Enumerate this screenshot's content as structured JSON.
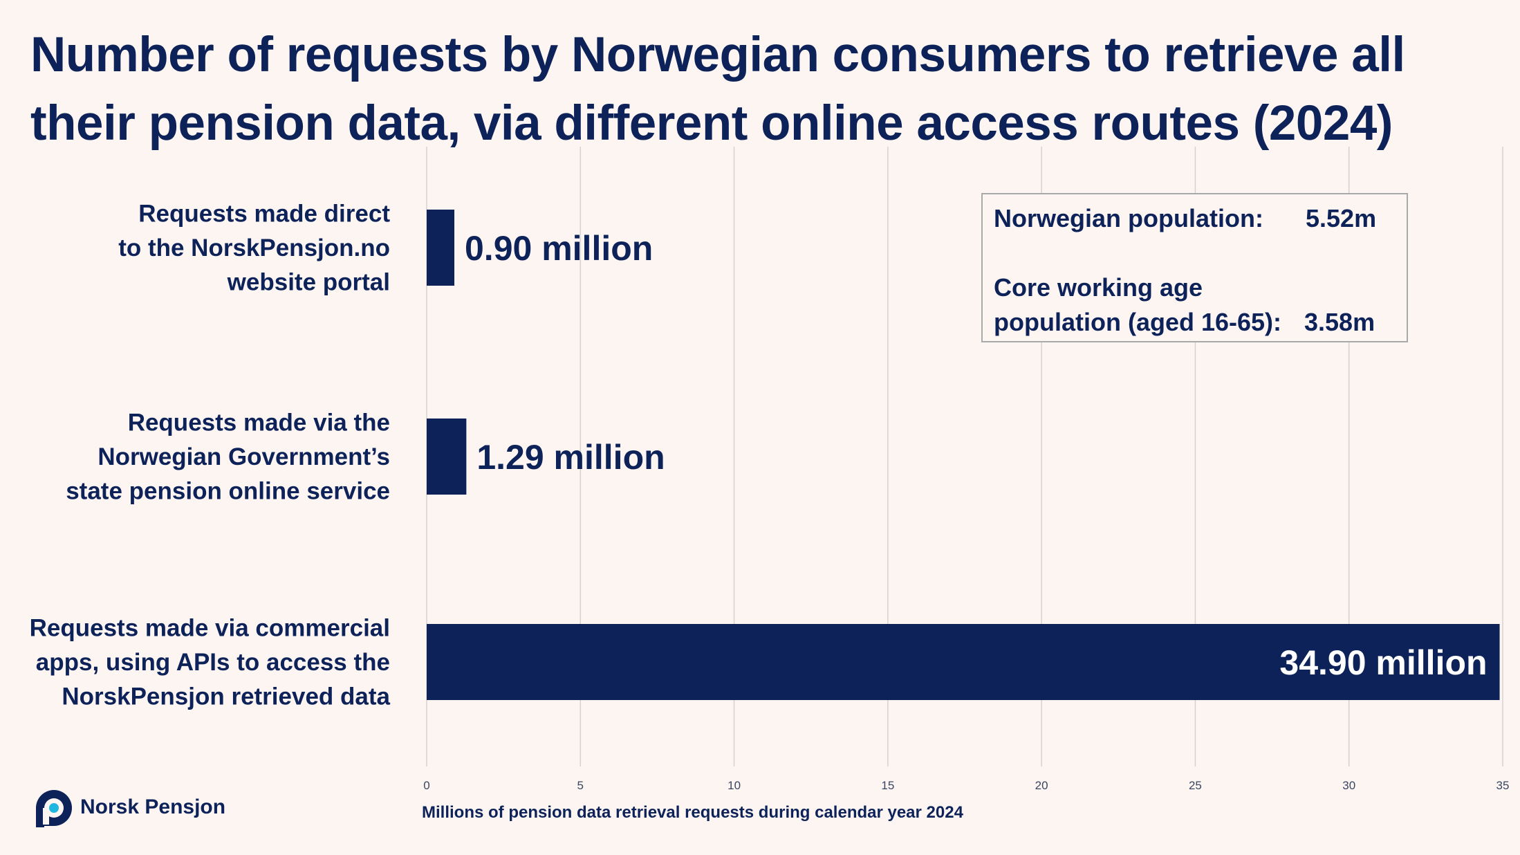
{
  "colors": {
    "background": "#fcf5f2",
    "bar": "#0d2259",
    "text": "#0d2259",
    "grid": "#d6d2d0"
  },
  "chart_data": {
    "type": "bar",
    "orientation": "horizontal",
    "title": "Number of requests by Norwegian consumers to retrieve all their pension data, via different online access routes (2024)",
    "xlabel": "Millions of pension data retrieval requests during calendar year 2024",
    "xlim": [
      0,
      35
    ],
    "xticks": [
      0,
      5,
      10,
      15,
      20,
      25,
      30,
      35
    ],
    "grid": true,
    "categories": [
      [
        "Requests made direct",
        "to the NorskPensjon.no",
        "website portal"
      ],
      [
        "Requests made via the",
        "Norwegian Government’s",
        "state pension online service"
      ],
      [
        "Requests made via commercial",
        "apps, using APIs to access the",
        "NorskPensjon retrieved data"
      ]
    ],
    "values": [
      0.9,
      1.29,
      34.9
    ],
    "data_labels": [
      "0.90 million",
      "1.29 million",
      "34.90 million"
    ]
  },
  "infobox": {
    "rows": [
      {
        "label": [
          "Norwegian population:"
        ],
        "value": "5.52m"
      },
      {
        "label": [
          "Core working age",
          "population (aged 16-65):"
        ],
        "value": "3.58m"
      }
    ]
  },
  "logo": {
    "text": "Norsk Pensjon",
    "icon": "norsk-pensjon-logo-icon"
  }
}
